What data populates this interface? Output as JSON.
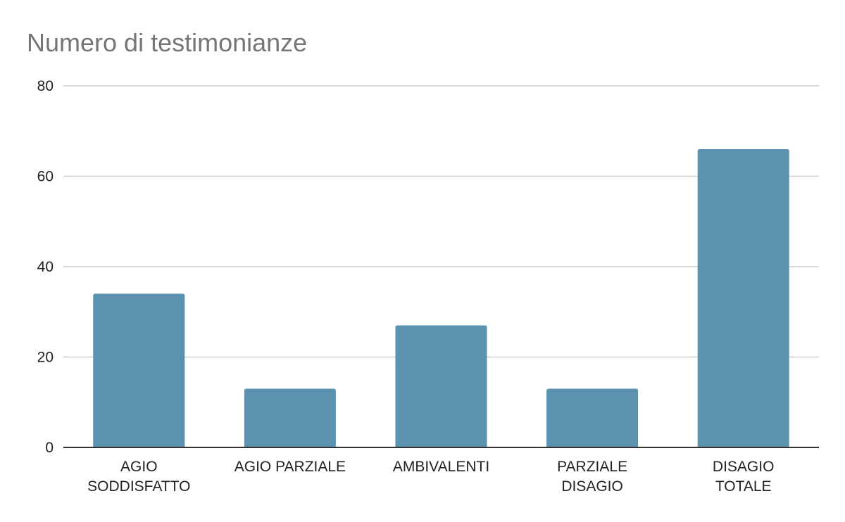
{
  "chart_data": {
    "type": "bar",
    "title": "Numero di testimonianze",
    "categories": [
      [
        "AGIO",
        "SODDISFATTO"
      ],
      [
        "AGIO PARZIALE"
      ],
      [
        "AMBIVALENTI"
      ],
      [
        "PARZIALE",
        "DISAGIO"
      ],
      [
        "DISAGIO",
        "TOTALE"
      ]
    ],
    "values": [
      34,
      13,
      27,
      13,
      66
    ],
    "ylim": [
      0,
      80
    ],
    "yticks": [
      "0",
      "20",
      "40",
      "60",
      "80"
    ],
    "grid": true,
    "bar_color": "#5a92b0",
    "grid_color": "#cccccc",
    "axis_color": "#333333"
  }
}
